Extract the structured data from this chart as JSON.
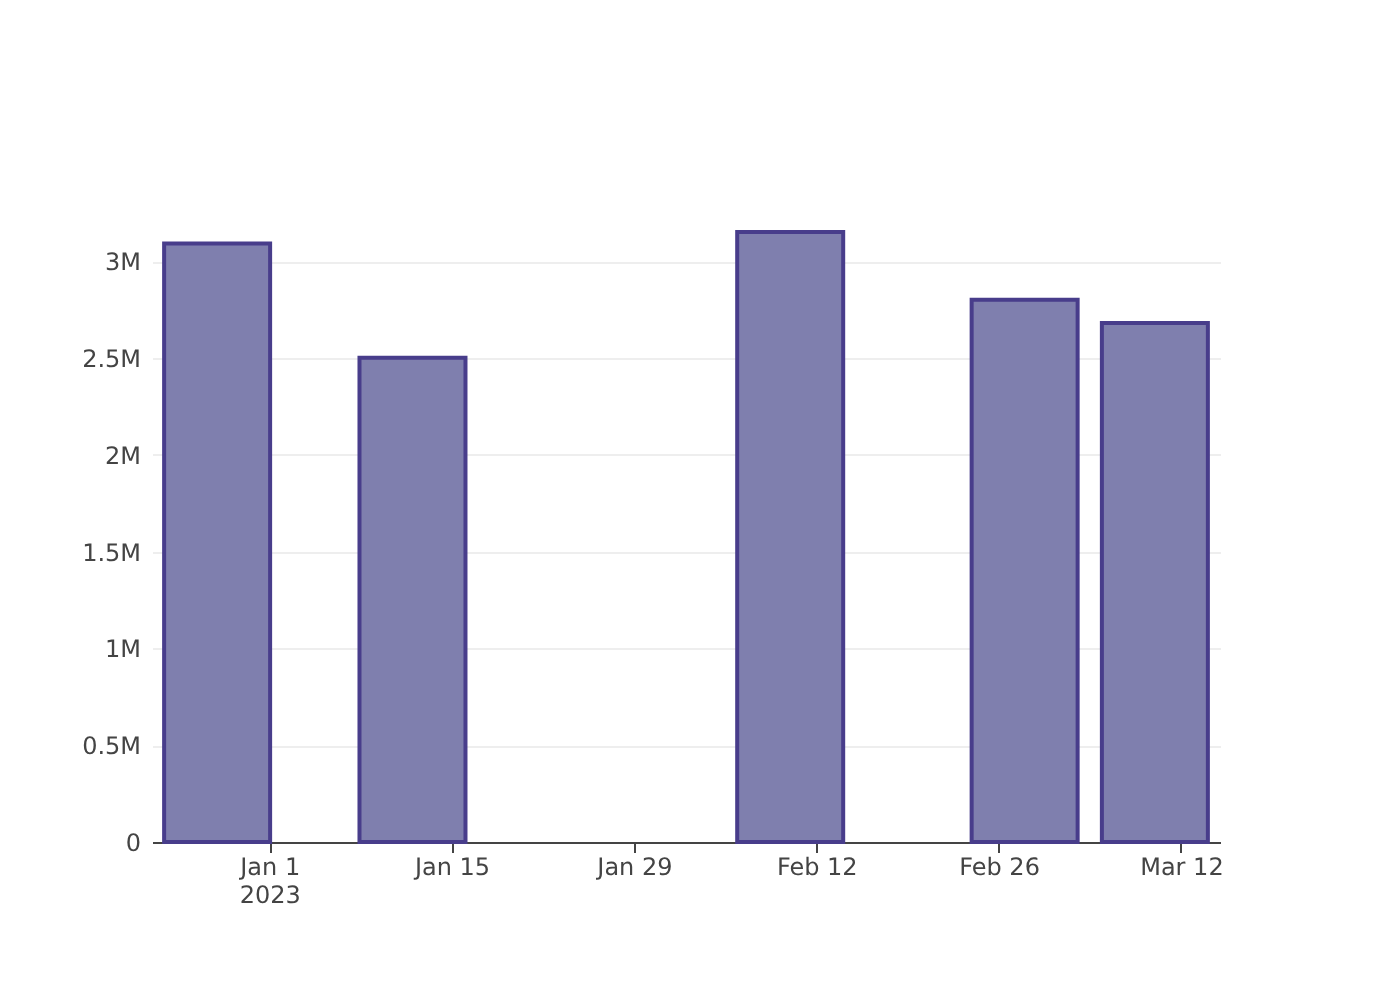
{
  "chart_data": {
    "type": "bar",
    "x": [
      "2022-12-28",
      "2023-01-12",
      "2023-02-10",
      "2023-02-28",
      "2023-03-10"
    ],
    "values": [
      3090000,
      2500000,
      3150000,
      2800000,
      2680000
    ],
    "color": "#7f7fae",
    "xlim": [
      "2022-12-23",
      "2023-03-15"
    ],
    "xticks": [
      {
        "value": "2023-01-01",
        "label": "Jan 1\n2023"
      },
      {
        "value": "2023-01-15",
        "label": "Jan 15"
      },
      {
        "value": "2023-01-29",
        "label": "Jan 29"
      },
      {
        "value": "2023-02-12",
        "label": "Feb 12"
      },
      {
        "value": "2023-02-26",
        "label": "Feb 26"
      },
      {
        "value": "2023-03-12",
        "label": "Mar 12"
      }
    ],
    "ylim": [
      0,
      3150000
    ],
    "yticks": [
      {
        "value": 0,
        "label": "0"
      },
      {
        "value": 500000,
        "label": "0.5M"
      },
      {
        "value": 1000000,
        "label": "1M"
      },
      {
        "value": 1500000,
        "label": "1.5M"
      },
      {
        "value": 2000000,
        "label": "2M"
      },
      {
        "value": 2500000,
        "label": "2.5M"
      },
      {
        "value": 3000000,
        "label": "3M"
      }
    ],
    "grid": "y"
  }
}
